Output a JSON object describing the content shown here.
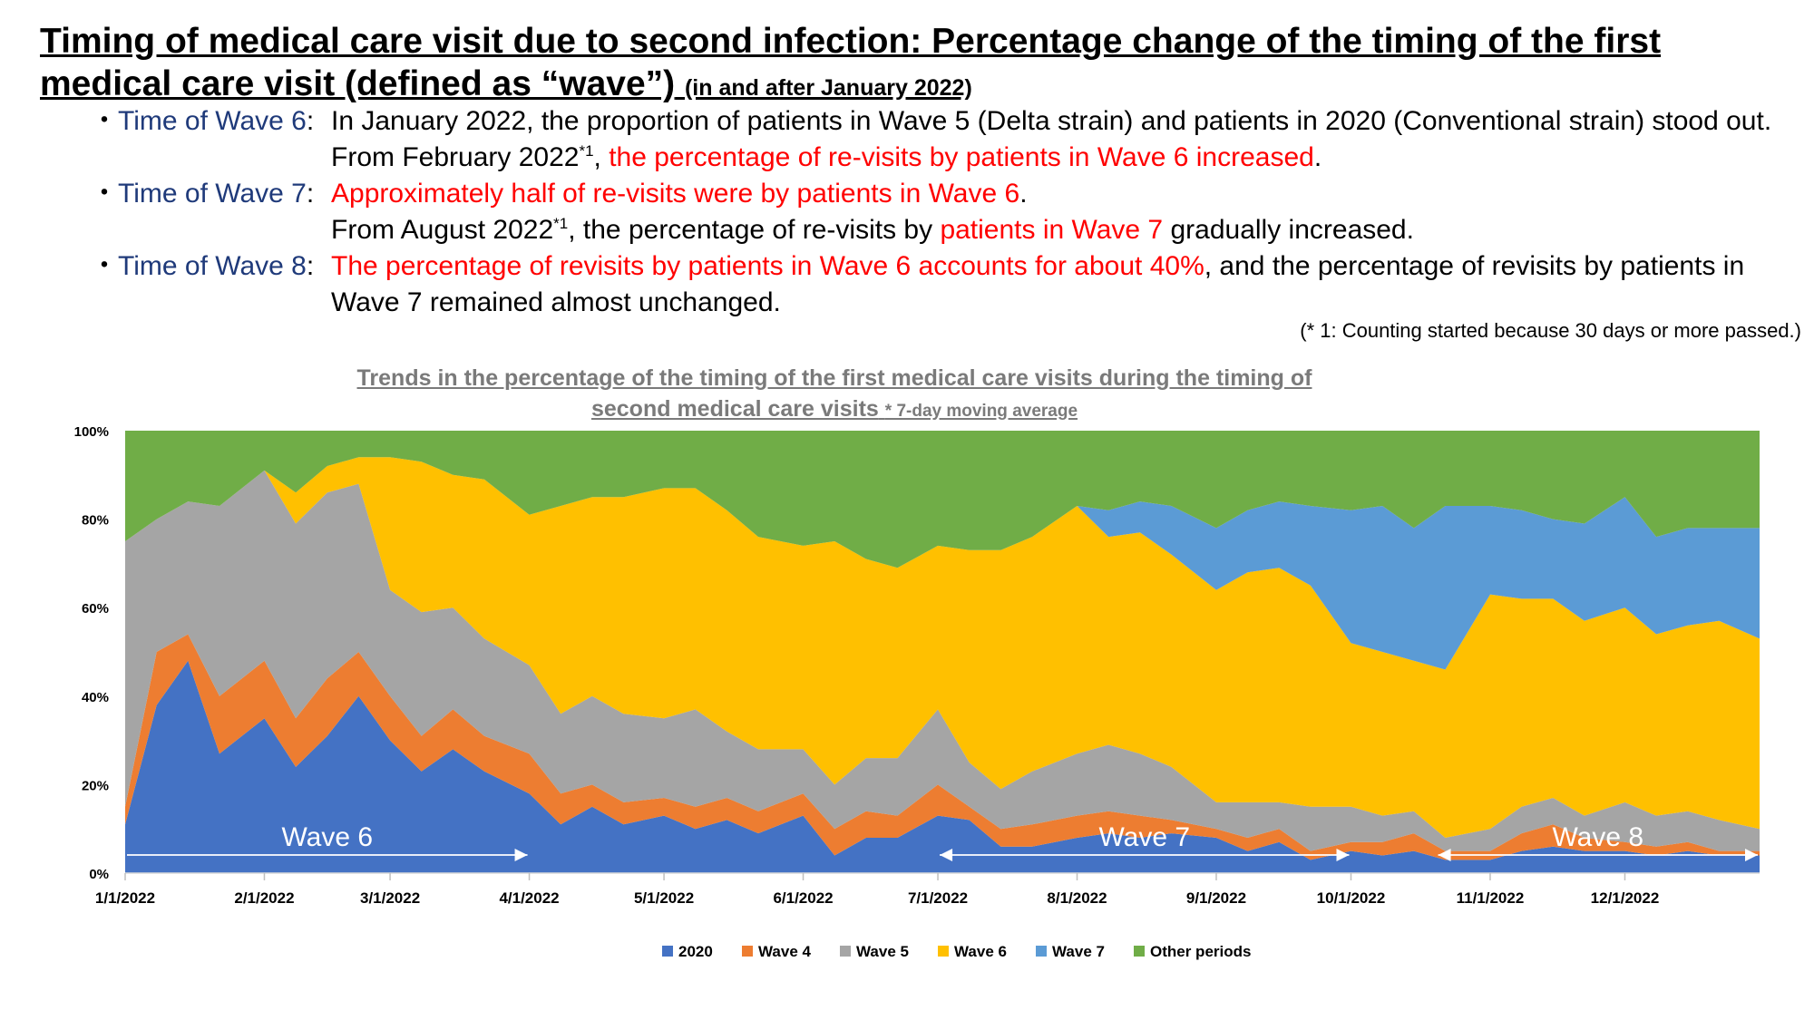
{
  "header": {
    "title": "Timing of medical care visit due to second infection: Percentage change of the timing of the first medical care visit (defined as “wave”)",
    "title_note": "(in and after January 2022)"
  },
  "bullets": [
    {
      "lead": "Time of Wave 6",
      "segments": [
        {
          "text": "In January 2022, the proportion of patients in Wave 5 (Delta strain) and patients in 2020 (Conventional strain) stood out. From February 2022",
          "red": false
        },
        {
          "text": "*1",
          "sup": true
        },
        {
          "text": ", ",
          "red": false
        },
        {
          "text": "the percentage of re-visits by patients in Wave 6 increased",
          "red": true
        },
        {
          "text": ".",
          "red": false
        }
      ]
    },
    {
      "lead": "Time of Wave 7",
      "segments": [
        {
          "text": "Approximately half of re-visits were by patients in Wave 6",
          "red": true
        },
        {
          "text": ".",
          "red": false
        },
        {
          "br": true
        },
        {
          "text": "From August 2022",
          "red": false
        },
        {
          "text": "*1",
          "sup": true
        },
        {
          "text": ", the percentage of re-visits by ",
          "red": false
        },
        {
          "text": "patients in Wave 7",
          "red": true
        },
        {
          "text": " gradually increased.",
          "red": false
        }
      ]
    },
    {
      "lead": "Time of Wave 8",
      "segments": [
        {
          "text": "The percentage of revisits by patients in Wave 6 accounts for about 40%",
          "red": true
        },
        {
          "text": ", and the percentage of revisits by patients in Wave 7 remained almost unchanged.",
          "red": false
        }
      ]
    }
  ],
  "footnote": "(* 1: Counting started because 30 days or more passed.)",
  "chart_title": "Trends in the percentage of the timing of the first medical care visits during the timing of second medical care visits",
  "chart_note": "* 7-day moving average",
  "colors": {
    "2020": "#4472c4",
    "Wave 4": "#ed7d31",
    "Wave 5": "#a5a5a5",
    "Wave 6": "#ffc000",
    "Wave 7": "#5b9bd5",
    "Other periods": "#70ad47"
  },
  "chart_data": {
    "type": "area",
    "stacked": true,
    "normalized_percent": true,
    "x": [
      "1/1/2022",
      "1/8/2022",
      "1/15/2022",
      "1/22/2022",
      "2/1/2022",
      "2/8/2022",
      "2/15/2022",
      "2/22/2022",
      "3/1/2022",
      "3/8/2022",
      "3/15/2022",
      "3/22/2022",
      "4/1/2022",
      "4/8/2022",
      "4/15/2022",
      "4/22/2022",
      "5/1/2022",
      "5/8/2022",
      "5/15/2022",
      "5/22/2022",
      "6/1/2022",
      "6/8/2022",
      "6/15/2022",
      "6/22/2022",
      "7/1/2022",
      "7/8/2022",
      "7/15/2022",
      "7/22/2022",
      "8/1/2022",
      "8/8/2022",
      "8/15/2022",
      "8/22/2022",
      "9/1/2022",
      "9/8/2022",
      "9/15/2022",
      "9/22/2022",
      "10/1/2022",
      "10/8/2022",
      "10/15/2022",
      "10/22/2022",
      "11/1/2022",
      "11/8/2022",
      "11/15/2022",
      "11/22/2022",
      "12/1/2022",
      "12/8/2022",
      "12/15/2022",
      "12/22/2022",
      "12/31/2022"
    ],
    "series": [
      {
        "name": "2020",
        "values": [
          11,
          38,
          48,
          27,
          35,
          24,
          31,
          40,
          30,
          23,
          28,
          23,
          18,
          11,
          15,
          11,
          13,
          10,
          12,
          9,
          13,
          4,
          8,
          8,
          13,
          12,
          6,
          6,
          8,
          9,
          8,
          9,
          8,
          5,
          7,
          3,
          5,
          4,
          5,
          3,
          3,
          5,
          6,
          5,
          5,
          4,
          5,
          4,
          4
        ]
      },
      {
        "name": "Wave 4",
        "values": [
          4,
          12,
          6,
          13,
          13,
          11,
          13,
          10,
          10,
          8,
          9,
          8,
          9,
          7,
          5,
          5,
          4,
          5,
          5,
          5,
          5,
          6,
          6,
          5,
          7,
          3,
          4,
          5,
          5,
          5,
          5,
          3,
          2,
          3,
          3,
          2,
          2,
          3,
          4,
          2,
          2,
          4,
          5,
          3,
          2,
          2,
          2,
          1,
          1
        ]
      },
      {
        "name": "Wave 5",
        "values": [
          60,
          30,
          30,
          43,
          43,
          44,
          42,
          38,
          24,
          28,
          23,
          22,
          20,
          18,
          20,
          20,
          18,
          22,
          15,
          14,
          10,
          10,
          12,
          13,
          17,
          10,
          9,
          12,
          14,
          15,
          14,
          12,
          6,
          8,
          6,
          10,
          8,
          6,
          5,
          3,
          5,
          6,
          6,
          5,
          9,
          7,
          7,
          7,
          5
        ]
      },
      {
        "name": "Wave 6",
        "values": [
          0,
          0,
          0,
          0,
          0,
          7,
          6,
          6,
          30,
          34,
          30,
          36,
          34,
          47,
          45,
          49,
          52,
          50,
          50,
          48,
          46,
          55,
          45,
          43,
          37,
          48,
          54,
          53,
          56,
          47,
          50,
          48,
          48,
          52,
          53,
          50,
          37,
          37,
          34,
          38,
          53,
          47,
          45,
          44,
          44,
          41,
          42,
          45,
          43
        ]
      },
      {
        "name": "Wave 7",
        "values": [
          0,
          0,
          0,
          0,
          0,
          0,
          0,
          0,
          0,
          0,
          0,
          0,
          0,
          0,
          0,
          0,
          0,
          0,
          0,
          0,
          0,
          0,
          0,
          0,
          0,
          0,
          0,
          0,
          0,
          6,
          7,
          11,
          14,
          14,
          15,
          18,
          30,
          33,
          30,
          37,
          20,
          20,
          18,
          22,
          25,
          22,
          22,
          21,
          25
        ]
      },
      {
        "name": "Other periods",
        "values": [
          25,
          20,
          16,
          17,
          9,
          14,
          8,
          6,
          6,
          7,
          10,
          11,
          19,
          17,
          15,
          15,
          13,
          13,
          18,
          24,
          26,
          25,
          29,
          31,
          26,
          27,
          27,
          24,
          17,
          18,
          16,
          17,
          22,
          18,
          16,
          17,
          18,
          17,
          22,
          17,
          17,
          18,
          20,
          21,
          15,
          24,
          22,
          22,
          22
        ]
      }
    ],
    "ylim": [
      0,
      100
    ],
    "yticks": [
      "0%",
      "20%",
      "40%",
      "60%",
      "80%",
      "100%"
    ],
    "xticks": [
      "1/1/2022",
      "2/1/2022",
      "3/1/2022",
      "4/1/2022",
      "5/1/2022",
      "6/1/2022",
      "7/1/2022",
      "8/1/2022",
      "9/1/2022",
      "10/1/2022",
      "11/1/2022",
      "12/1/2022"
    ],
    "legend": [
      "2020",
      "Wave 4",
      "Wave 5",
      "Wave 6",
      "Wave 7",
      "Other periods"
    ],
    "legend_position": "bottom",
    "annotations": [
      {
        "text": "Wave 6",
        "from": "1/1/2022",
        "to": "4/1/2022"
      },
      {
        "text": "Wave 7",
        "from": "7/1/2022",
        "to": "10/1/2022"
      },
      {
        "text": "Wave 8",
        "from": "10/20/2022",
        "to": "12/31/2022"
      }
    ]
  }
}
